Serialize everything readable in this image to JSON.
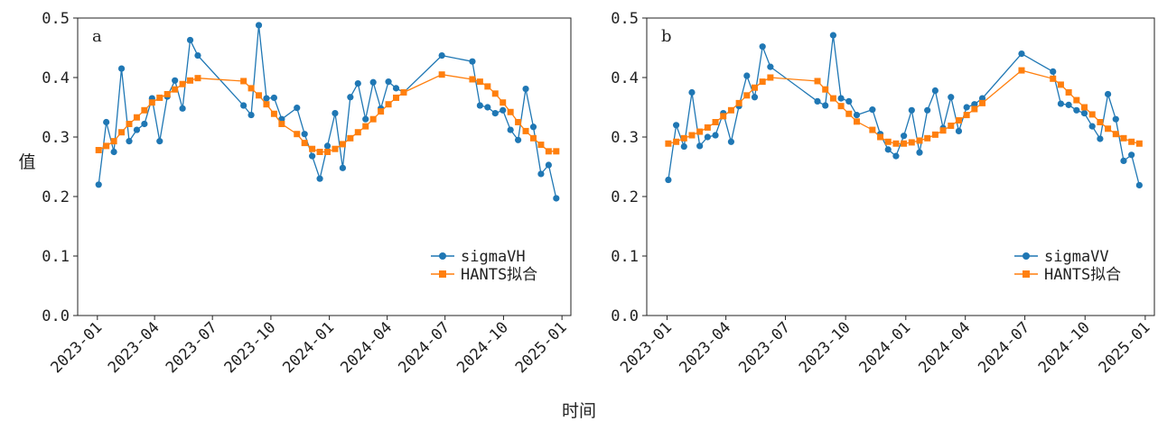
{
  "figure": {
    "xlabel": "时间",
    "ylabel": "值",
    "colors": {
      "observed": "#1f77b4",
      "fitted": "#ff7f0e"
    },
    "legend_position": "lower-right"
  },
  "chart_data": [
    {
      "type": "line",
      "panel": "a",
      "xlabel": "时间",
      "ylabel": "值",
      "ylim": [
        0,
        0.5
      ],
      "xlim": [
        "2022-12-01",
        "2025-01-15"
      ],
      "x_ticks": [
        "2023-01",
        "2023-04",
        "2023-07",
        "2023-10",
        "2024-01",
        "2024-04",
        "2024-07",
        "2024-10",
        "2025-01"
      ],
      "y_ticks": [
        "0.0",
        "0.1",
        "0.2",
        "0.3",
        "0.4",
        "0.5"
      ],
      "grid": false,
      "legend": "lower-right",
      "series": [
        {
          "name": "sigmaVH",
          "color": "#1f77b4",
          "marker": "circle",
          "x": [
            "2023-01-03",
            "2023-01-15",
            "2023-01-27",
            "2023-02-08",
            "2023-02-20",
            "2023-03-04",
            "2023-03-16",
            "2023-03-28",
            "2023-04-09",
            "2023-04-21",
            "2023-05-03",
            "2023-05-15",
            "2023-05-27",
            "2023-06-08",
            "2023-08-19",
            "2023-08-31",
            "2023-09-12",
            "2023-09-24",
            "2023-10-06",
            "2023-10-18",
            "2023-11-11",
            "2023-11-23",
            "2023-12-05",
            "2023-12-17",
            "2023-12-29",
            "2024-01-10",
            "2024-01-22",
            "2024-02-03",
            "2024-02-15",
            "2024-02-27",
            "2024-03-10",
            "2024-03-22",
            "2024-04-03",
            "2024-04-15",
            "2024-04-27",
            "2024-06-26",
            "2024-08-13",
            "2024-08-25",
            "2024-09-06",
            "2024-09-18",
            "2024-09-30",
            "2024-10-12",
            "2024-10-24",
            "2024-11-05",
            "2024-11-17",
            "2024-11-29",
            "2024-12-11",
            "2024-12-23"
          ],
          "values": [
            0.22,
            0.325,
            0.275,
            0.415,
            0.293,
            0.312,
            0.322,
            0.365,
            0.293,
            0.368,
            0.395,
            0.348,
            0.463,
            0.437,
            0.353,
            0.337,
            0.488,
            0.365,
            0.366,
            0.33,
            0.349,
            0.305,
            0.268,
            0.23,
            0.285,
            0.34,
            0.248,
            0.367,
            0.39,
            0.33,
            0.392,
            0.348,
            0.393,
            0.382,
            0.375,
            0.437,
            0.427,
            0.353,
            0.35,
            0.34,
            0.345,
            0.312,
            0.295,
            0.381,
            0.317,
            0.238,
            0.253,
            0.197
          ]
        },
        {
          "name": "HANTS拟合",
          "color": "#ff7f0e",
          "marker": "square",
          "x": [
            "2023-01-03",
            "2023-01-15",
            "2023-01-27",
            "2023-02-08",
            "2023-02-20",
            "2023-03-04",
            "2023-03-16",
            "2023-03-28",
            "2023-04-09",
            "2023-04-21",
            "2023-05-03",
            "2023-05-15",
            "2023-05-27",
            "2023-06-08",
            "2023-08-19",
            "2023-08-31",
            "2023-09-12",
            "2023-09-24",
            "2023-10-06",
            "2023-10-18",
            "2023-11-11",
            "2023-11-23",
            "2023-12-05",
            "2023-12-17",
            "2023-12-29",
            "2024-01-10",
            "2024-01-22",
            "2024-02-03",
            "2024-02-15",
            "2024-02-27",
            "2024-03-10",
            "2024-03-22",
            "2024-04-03",
            "2024-04-15",
            "2024-04-27",
            "2024-06-26",
            "2024-08-13",
            "2024-08-25",
            "2024-09-06",
            "2024-09-18",
            "2024-09-30",
            "2024-10-12",
            "2024-10-24",
            "2024-11-05",
            "2024-11-17",
            "2024-11-29",
            "2024-12-11",
            "2024-12-23"
          ],
          "values": [
            0.278,
            0.285,
            0.293,
            0.308,
            0.322,
            0.333,
            0.345,
            0.358,
            0.366,
            0.372,
            0.38,
            0.389,
            0.395,
            0.399,
            0.394,
            0.382,
            0.37,
            0.355,
            0.339,
            0.322,
            0.305,
            0.29,
            0.28,
            0.275,
            0.275,
            0.28,
            0.288,
            0.298,
            0.308,
            0.318,
            0.33,
            0.343,
            0.355,
            0.366,
            0.375,
            0.405,
            0.397,
            0.393,
            0.385,
            0.373,
            0.358,
            0.342,
            0.325,
            0.31,
            0.298,
            0.287,
            0.276,
            0.276
          ]
        }
      ]
    },
    {
      "type": "line",
      "panel": "b",
      "xlabel": "时间",
      "ylabel": "值",
      "ylim": [
        0,
        0.5
      ],
      "xlim": [
        "2022-12-01",
        "2025-01-15"
      ],
      "x_ticks": [
        "2023-01",
        "2023-04",
        "2023-07",
        "2023-10",
        "2024-01",
        "2024-04",
        "2024-07",
        "2024-10",
        "2025-01"
      ],
      "y_ticks": [
        "0.0",
        "0.1",
        "0.2",
        "0.3",
        "0.4",
        "0.5"
      ],
      "grid": false,
      "legend": "lower-right",
      "series": [
        {
          "name": "sigmaVV",
          "color": "#1f77b4",
          "marker": "circle",
          "x": [
            "2023-01-03",
            "2023-01-15",
            "2023-01-27",
            "2023-02-08",
            "2023-02-20",
            "2023-03-04",
            "2023-03-16",
            "2023-03-28",
            "2023-04-09",
            "2023-04-21",
            "2023-05-03",
            "2023-05-15",
            "2023-05-27",
            "2023-06-08",
            "2023-08-19",
            "2023-08-31",
            "2023-09-12",
            "2023-09-24",
            "2023-10-06",
            "2023-10-18",
            "2023-11-11",
            "2023-11-23",
            "2023-12-05",
            "2023-12-17",
            "2023-12-29",
            "2024-01-10",
            "2024-01-22",
            "2024-02-03",
            "2024-02-15",
            "2024-02-27",
            "2024-03-10",
            "2024-03-22",
            "2024-04-03",
            "2024-04-15",
            "2024-04-27",
            "2024-06-26",
            "2024-08-13",
            "2024-08-25",
            "2024-09-06",
            "2024-09-18",
            "2024-09-30",
            "2024-10-12",
            "2024-10-24",
            "2024-11-05",
            "2024-11-17",
            "2024-11-29",
            "2024-12-11",
            "2024-12-23"
          ],
          "values": [
            0.228,
            0.32,
            0.284,
            0.375,
            0.285,
            0.3,
            0.303,
            0.34,
            0.292,
            0.352,
            0.403,
            0.367,
            0.452,
            0.418,
            0.36,
            0.353,
            0.471,
            0.365,
            0.36,
            0.337,
            0.346,
            0.305,
            0.279,
            0.268,
            0.302,
            0.345,
            0.274,
            0.345,
            0.378,
            0.315,
            0.367,
            0.31,
            0.35,
            0.355,
            0.365,
            0.44,
            0.41,
            0.356,
            0.354,
            0.345,
            0.34,
            0.318,
            0.297,
            0.372,
            0.33,
            0.26,
            0.27,
            0.219
          ]
        },
        {
          "name": "HANTS拟合",
          "color": "#ff7f0e",
          "marker": "square",
          "x": [
            "2023-01-03",
            "2023-01-15",
            "2023-01-27",
            "2023-02-08",
            "2023-02-20",
            "2023-03-04",
            "2023-03-16",
            "2023-03-28",
            "2023-04-09",
            "2023-04-21",
            "2023-05-03",
            "2023-05-15",
            "2023-05-27",
            "2023-06-08",
            "2023-08-19",
            "2023-08-31",
            "2023-09-12",
            "2023-09-24",
            "2023-10-06",
            "2023-10-18",
            "2023-11-11",
            "2023-11-23",
            "2023-12-05",
            "2023-12-17",
            "2023-12-29",
            "2024-01-10",
            "2024-01-22",
            "2024-02-03",
            "2024-02-15",
            "2024-02-27",
            "2024-03-10",
            "2024-03-22",
            "2024-04-03",
            "2024-04-15",
            "2024-04-27",
            "2024-06-26",
            "2024-08-13",
            "2024-08-25",
            "2024-09-06",
            "2024-09-18",
            "2024-09-30",
            "2024-10-12",
            "2024-10-24",
            "2024-11-05",
            "2024-11-17",
            "2024-11-29",
            "2024-12-11",
            "2024-12-23"
          ],
          "values": [
            0.289,
            0.292,
            0.298,
            0.303,
            0.309,
            0.316,
            0.325,
            0.335,
            0.345,
            0.357,
            0.37,
            0.383,
            0.393,
            0.4,
            0.394,
            0.38,
            0.365,
            0.352,
            0.339,
            0.326,
            0.312,
            0.3,
            0.292,
            0.289,
            0.289,
            0.291,
            0.294,
            0.298,
            0.304,
            0.311,
            0.319,
            0.328,
            0.337,
            0.347,
            0.357,
            0.412,
            0.398,
            0.388,
            0.375,
            0.362,
            0.35,
            0.338,
            0.325,
            0.314,
            0.305,
            0.298,
            0.292,
            0.289
          ]
        }
      ]
    }
  ]
}
